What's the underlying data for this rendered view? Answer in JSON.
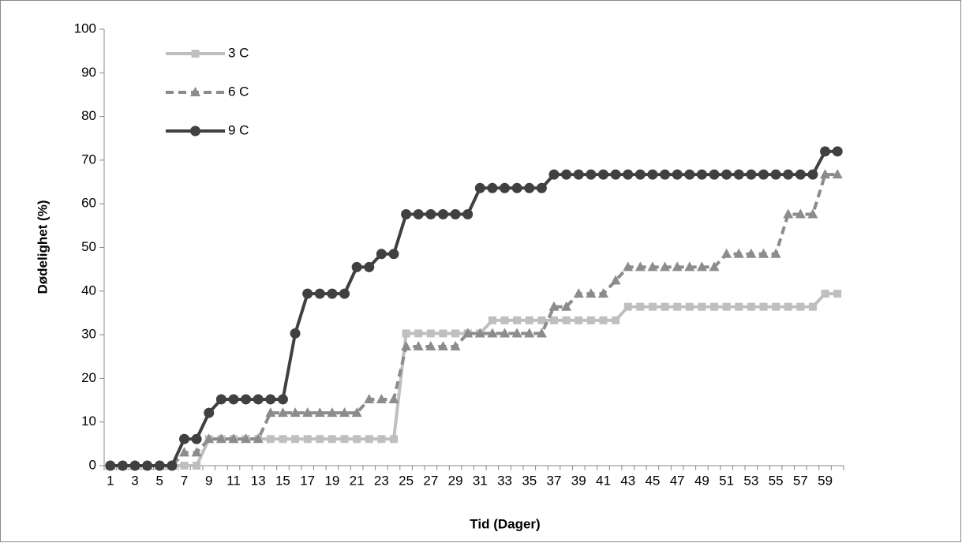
{
  "chart_data": {
    "type": "line",
    "y_label": "Dødelighet  (%)",
    "x_label": "Tid  (Dager)",
    "categories": [
      "1",
      null,
      "3",
      null,
      "5",
      null,
      "7",
      null,
      "9",
      null,
      "11",
      null,
      "13",
      null,
      "15",
      null,
      "17",
      null,
      "19",
      null,
      "21",
      null,
      "23",
      null,
      "25",
      null,
      "27",
      null,
      "29",
      null,
      "31",
      null,
      "33",
      null,
      "35",
      null,
      "37",
      null,
      "39",
      null,
      "41",
      null,
      "43",
      null,
      "45",
      null,
      "47",
      null,
      "49",
      null,
      "51",
      null,
      "53",
      null,
      "55",
      null,
      "57",
      null,
      "59",
      null
    ],
    "series": [
      {
        "name": "3 C",
        "color": "#bfbfbf",
        "marker": "square",
        "dashed": false,
        "values": [
          0,
          0,
          0,
          0,
          0,
          0,
          0,
          0,
          6.1,
          6.1,
          6.1,
          6.1,
          6.1,
          6.1,
          6.1,
          6.1,
          6.1,
          6.1,
          6.1,
          6.1,
          6.1,
          6.1,
          6.1,
          6.1,
          30.3,
          30.3,
          30.3,
          30.3,
          30.3,
          30.3,
          30.3,
          33.3,
          33.3,
          33.3,
          33.3,
          33.3,
          33.3,
          33.3,
          33.3,
          33.3,
          33.3,
          33.3,
          36.4,
          36.4,
          36.4,
          36.4,
          36.4,
          36.4,
          36.4,
          36.4,
          36.4,
          36.4,
          36.4,
          36.4,
          36.4,
          36.4,
          36.4,
          36.4,
          39.4,
          39.4
        ]
      },
      {
        "name": "6 C",
        "color": "#8c8c8c",
        "marker": "triangle",
        "dashed": true,
        "values": [
          0,
          0,
          0,
          0,
          0,
          0,
          3,
          3,
          6.1,
          6.1,
          6.1,
          6.1,
          6.1,
          12.1,
          12.1,
          12.1,
          12.1,
          12.1,
          12.1,
          12.1,
          12.1,
          15.2,
          15.2,
          15.2,
          27.3,
          27.3,
          27.3,
          27.3,
          27.3,
          30.3,
          30.3,
          30.3,
          30.3,
          30.3,
          30.3,
          30.3,
          36.4,
          36.4,
          39.4,
          39.4,
          39.4,
          42.4,
          45.5,
          45.5,
          45.5,
          45.5,
          45.5,
          45.5,
          45.5,
          45.5,
          48.5,
          48.5,
          48.5,
          48.5,
          48.5,
          57.6,
          57.6,
          57.6,
          66.7,
          66.7
        ]
      },
      {
        "name": "9 C",
        "color": "#404040",
        "marker": "circle",
        "dashed": false,
        "values": [
          0,
          0,
          0,
          0,
          0,
          0,
          6.1,
          6.1,
          12.1,
          15.2,
          15.2,
          15.2,
          15.2,
          15.2,
          15.2,
          30.3,
          39.4,
          39.4,
          39.4,
          39.4,
          45.5,
          45.5,
          48.5,
          48.5,
          57.6,
          57.6,
          57.6,
          57.6,
          57.6,
          57.6,
          63.6,
          63.6,
          63.6,
          63.6,
          63.6,
          63.6,
          66.7,
          66.7,
          66.7,
          66.7,
          66.7,
          66.7,
          66.7,
          66.7,
          66.7,
          66.7,
          66.7,
          66.7,
          66.7,
          66.7,
          66.7,
          66.7,
          66.7,
          66.7,
          66.7,
          66.7,
          66.7,
          66.7,
          72,
          72
        ]
      }
    ],
    "ylim": [
      0,
      100
    ],
    "yticks": [
      0,
      10,
      20,
      30,
      40,
      50,
      60,
      70,
      80,
      90,
      100
    ],
    "grid": false,
    "legend": "top-left"
  }
}
